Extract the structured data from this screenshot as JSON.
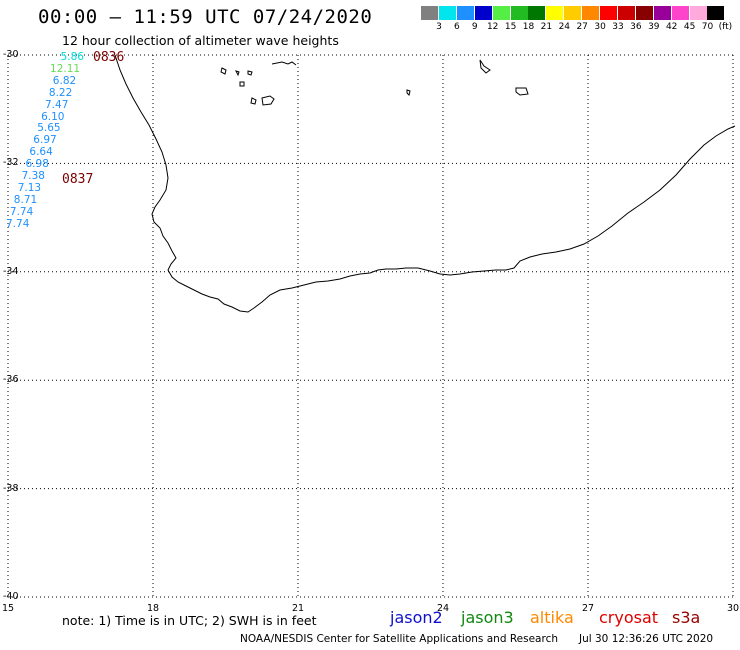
{
  "header": {
    "title": "00:00 – 11:59 UTC 07/24/2020",
    "subtitle": "12 hour collection of altimeter wave heights"
  },
  "legend": {
    "colors": [
      "#808080",
      "#00e5ee",
      "#1e90ff",
      "#0000cd",
      "#55ee44",
      "#22bb22",
      "#007700",
      "#ffff00",
      "#ffcc00",
      "#ff8800",
      "#ff0000",
      "#cc0000",
      "#880000",
      "#990099",
      "#ff44cc",
      "#ffaadd",
      "#000000"
    ],
    "labels": [
      "3",
      "6",
      "9",
      "12",
      "15",
      "18",
      "21",
      "24",
      "27",
      "30",
      "33",
      "36",
      "39",
      "42",
      "45",
      "70",
      "(ft)"
    ]
  },
  "axes": {
    "lat_labels": [
      "-30",
      "-32",
      "-34",
      "-36",
      "-38",
      "-40"
    ],
    "lat_values": [
      -30,
      -32,
      -34,
      -36,
      -38,
      -40
    ],
    "lon_labels": [
      "15",
      "18",
      "21",
      "24",
      "27",
      "30"
    ],
    "lon_values": [
      15,
      18,
      21,
      24,
      27,
      30
    ],
    "lon_range": [
      15,
      30
    ],
    "lat_range": [
      -40,
      -30
    ]
  },
  "wave_heights": {
    "values": [
      "5.86",
      "12.11",
      "6.82",
      "8.22",
      "7.47",
      "6.10",
      "5.65",
      "6.97",
      "6.64",
      "6.98",
      "7.38",
      "7.13",
      "8.71",
      "7.74",
      "7.74"
    ],
    "colors": [
      "#00d8d8",
      "#66dd55",
      "#1e90ff",
      "#1e90ff",
      "#1e90ff",
      "#1e90ff",
      "#1e90ff",
      "#1e90ff",
      "#1e90ff",
      "#1e90ff",
      "#1e90ff",
      "#1e90ff",
      "#1e90ff",
      "#1e90ff",
      "#1e90ff"
    ],
    "time_tags": [
      "0836",
      "0837"
    ]
  },
  "footer": {
    "note": "note: 1) Time is in UTC; 2) SWH is in feet",
    "satellites": [
      {
        "name": "jason2",
        "color": "#1010cc"
      },
      {
        "name": "jason3",
        "color": "#118811"
      },
      {
        "name": "altika",
        "color": "#ff8800"
      },
      {
        "name": "cryosat",
        "color": "#dd0000"
      },
      {
        "name": "s3a",
        "color": "#990000"
      }
    ],
    "credit": "NOAA/NESDIS Center for Satellite Applications and Research",
    "timestamp": "Jul 30 12:36:26 UTC 2020"
  }
}
